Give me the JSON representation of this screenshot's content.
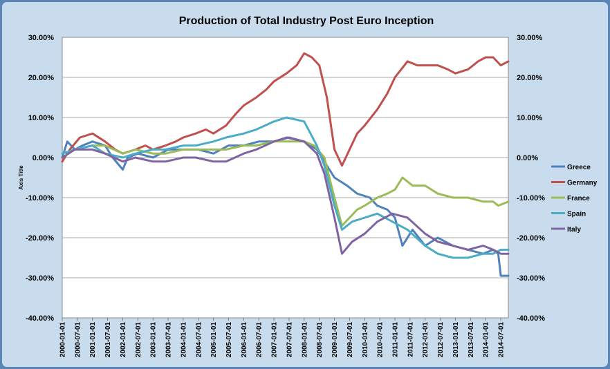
{
  "chart_data": {
    "type": "line",
    "title": "Production of Total Industry Post Euro Inception",
    "ylabel": "Axis Title",
    "xlabel": "",
    "ylim": [
      -0.4,
      0.3
    ],
    "y_ticks": [
      0.3,
      0.2,
      0.1,
      0.0,
      -0.1,
      -0.2,
      -0.3,
      -0.4
    ],
    "y_tick_labels": [
      "30.00%",
      "20.00%",
      "10.00%",
      "0.00%",
      "-10.00%",
      "-20.00%",
      "-30.00%",
      "-40.00%"
    ],
    "x_start": "2000-01",
    "x_end": "2014-10",
    "x_tick_labels": [
      "2000-01-01",
      "2000-07-01",
      "2001-01-01",
      "2001-07-01",
      "2002-01-01",
      "2002-07-01",
      "2003-01-01",
      "2003-07-01",
      "2004-01-01",
      "2004-07-01",
      "2005-01-01",
      "2005-07-01",
      "2006-01-01",
      "2006-07-01",
      "2007-01-01",
      "2007-07-01",
      "2008-01-01",
      "2008-07-01",
      "2009-01-01",
      "2009-07-01",
      "2010-01-01",
      "2010-07-01",
      "2011-01-01",
      "2011-07-01",
      "2012-01-01",
      "2012-07-01",
      "2013-01-01",
      "2013-07-01",
      "2014-01-01",
      "2014-07-01"
    ],
    "legend_position": "right",
    "grid": true,
    "series": [
      {
        "name": "Greece",
        "color": "#4f81bd",
        "points": [
          [
            "2000-01",
            0.0
          ],
          [
            "2000-03",
            0.04
          ],
          [
            "2000-06",
            0.02
          ],
          [
            "2000-09",
            0.03
          ],
          [
            "2001-01",
            0.04
          ],
          [
            "2001-06",
            0.03
          ],
          [
            "2001-09",
            0.0
          ],
          [
            "2002-01",
            -0.03
          ],
          [
            "2002-03",
            0.0
          ],
          [
            "2002-07",
            0.01
          ],
          [
            "2003-01",
            0.0
          ],
          [
            "2003-07",
            0.02
          ],
          [
            "2004-01",
            0.02
          ],
          [
            "2004-07",
            0.02
          ],
          [
            "2005-01",
            0.01
          ],
          [
            "2005-07",
            0.03
          ],
          [
            "2006-01",
            0.03
          ],
          [
            "2006-07",
            0.04
          ],
          [
            "2007-01",
            0.04
          ],
          [
            "2007-07",
            0.05
          ],
          [
            "2008-01",
            0.04
          ],
          [
            "2008-06",
            0.02
          ],
          [
            "2008-09",
            -0.01
          ],
          [
            "2009-01",
            -0.05
          ],
          [
            "2009-06",
            -0.07
          ],
          [
            "2009-10",
            -0.09
          ],
          [
            "2010-03",
            -0.1
          ],
          [
            "2010-06",
            -0.12
          ],
          [
            "2010-10",
            -0.13
          ],
          [
            "2011-01",
            -0.15
          ],
          [
            "2011-04",
            -0.22
          ],
          [
            "2011-08",
            -0.18
          ],
          [
            "2012-01",
            -0.22
          ],
          [
            "2012-06",
            -0.2
          ],
          [
            "2012-12",
            -0.22
          ],
          [
            "2013-06",
            -0.23
          ],
          [
            "2013-12",
            -0.24
          ],
          [
            "2014-04",
            -0.23
          ],
          [
            "2014-06",
            -0.24
          ],
          [
            "2014-07",
            -0.295
          ],
          [
            "2014-10",
            -0.295
          ]
        ]
      },
      {
        "name": "Germany",
        "color": "#c0504d",
        "points": [
          [
            "2000-01",
            -0.01
          ],
          [
            "2000-04",
            0.02
          ],
          [
            "2000-08",
            0.05
          ],
          [
            "2001-01",
            0.06
          ],
          [
            "2001-06",
            0.04
          ],
          [
            "2001-10",
            0.02
          ],
          [
            "2002-01",
            0.01
          ],
          [
            "2002-06",
            0.02
          ],
          [
            "2002-10",
            0.03
          ],
          [
            "2003-01",
            0.02
          ],
          [
            "2003-06",
            0.03
          ],
          [
            "2003-10",
            0.04
          ],
          [
            "2004-01",
            0.05
          ],
          [
            "2004-06",
            0.06
          ],
          [
            "2004-10",
            0.07
          ],
          [
            "2005-01",
            0.06
          ],
          [
            "2005-06",
            0.08
          ],
          [
            "2005-10",
            0.11
          ],
          [
            "2006-01",
            0.13
          ],
          [
            "2006-06",
            0.15
          ],
          [
            "2006-10",
            0.17
          ],
          [
            "2007-01",
            0.19
          ],
          [
            "2007-06",
            0.21
          ],
          [
            "2007-10",
            0.23
          ],
          [
            "2008-01",
            0.26
          ],
          [
            "2008-04",
            0.25
          ],
          [
            "2008-07",
            0.23
          ],
          [
            "2008-10",
            0.15
          ],
          [
            "2009-01",
            0.02
          ],
          [
            "2009-04",
            -0.02
          ],
          [
            "2009-07",
            0.02
          ],
          [
            "2009-10",
            0.06
          ],
          [
            "2010-01",
            0.08
          ],
          [
            "2010-06",
            0.12
          ],
          [
            "2010-10",
            0.16
          ],
          [
            "2011-01",
            0.2
          ],
          [
            "2011-06",
            0.24
          ],
          [
            "2011-10",
            0.23
          ],
          [
            "2012-01",
            0.23
          ],
          [
            "2012-06",
            0.23
          ],
          [
            "2012-10",
            0.22
          ],
          [
            "2013-01",
            0.21
          ],
          [
            "2013-06",
            0.22
          ],
          [
            "2013-10",
            0.24
          ],
          [
            "2014-01",
            0.25
          ],
          [
            "2014-04",
            0.25
          ],
          [
            "2014-07",
            0.23
          ],
          [
            "2014-10",
            0.24
          ]
        ]
      },
      {
        "name": "France",
        "color": "#9bbb59",
        "points": [
          [
            "2000-01",
            0.0
          ],
          [
            "2000-06",
            0.02
          ],
          [
            "2001-01",
            0.03
          ],
          [
            "2001-06",
            0.03
          ],
          [
            "2002-01",
            0.01
          ],
          [
            "2002-06",
            0.02
          ],
          [
            "2003-01",
            0.01
          ],
          [
            "2003-06",
            0.01
          ],
          [
            "2004-01",
            0.02
          ],
          [
            "2004-06",
            0.02
          ],
          [
            "2005-01",
            0.02
          ],
          [
            "2005-06",
            0.02
          ],
          [
            "2006-01",
            0.03
          ],
          [
            "2006-06",
            0.03
          ],
          [
            "2007-01",
            0.04
          ],
          [
            "2007-06",
            0.04
          ],
          [
            "2008-01",
            0.04
          ],
          [
            "2008-05",
            0.03
          ],
          [
            "2008-09",
            0.0
          ],
          [
            "2009-01",
            -0.1
          ],
          [
            "2009-04",
            -0.17
          ],
          [
            "2009-07",
            -0.15
          ],
          [
            "2009-10",
            -0.13
          ],
          [
            "2010-01",
            -0.12
          ],
          [
            "2010-06",
            -0.1
          ],
          [
            "2010-10",
            -0.09
          ],
          [
            "2011-01",
            -0.08
          ],
          [
            "2011-04",
            -0.05
          ],
          [
            "2011-08",
            -0.07
          ],
          [
            "2012-01",
            -0.07
          ],
          [
            "2012-06",
            -0.09
          ],
          [
            "2012-12",
            -0.1
          ],
          [
            "2013-06",
            -0.1
          ],
          [
            "2013-12",
            -0.11
          ],
          [
            "2014-04",
            -0.11
          ],
          [
            "2014-06",
            -0.12
          ],
          [
            "2014-10",
            -0.11
          ]
        ]
      },
      {
        "name": "Spain",
        "color": "#4bacc6",
        "points": [
          [
            "2000-01",
            0.01
          ],
          [
            "2000-06",
            0.02
          ],
          [
            "2001-01",
            0.03
          ],
          [
            "2001-06",
            0.01
          ],
          [
            "2002-01",
            0.0
          ],
          [
            "2002-06",
            0.01
          ],
          [
            "2003-01",
            0.02
          ],
          [
            "2003-06",
            0.02
          ],
          [
            "2004-01",
            0.03
          ],
          [
            "2004-06",
            0.03
          ],
          [
            "2005-01",
            0.04
          ],
          [
            "2005-06",
            0.05
          ],
          [
            "2006-01",
            0.06
          ],
          [
            "2006-06",
            0.07
          ],
          [
            "2007-01",
            0.09
          ],
          [
            "2007-06",
            0.1
          ],
          [
            "2008-01",
            0.09
          ],
          [
            "2008-06",
            0.03
          ],
          [
            "2008-09",
            -0.02
          ],
          [
            "2009-01",
            -0.12
          ],
          [
            "2009-04",
            -0.18
          ],
          [
            "2009-08",
            -0.16
          ],
          [
            "2010-01",
            -0.15
          ],
          [
            "2010-06",
            -0.14
          ],
          [
            "2010-12",
            -0.16
          ],
          [
            "2011-06",
            -0.18
          ],
          [
            "2012-01",
            -0.22
          ],
          [
            "2012-06",
            -0.24
          ],
          [
            "2012-12",
            -0.25
          ],
          [
            "2013-06",
            -0.25
          ],
          [
            "2013-12",
            -0.24
          ],
          [
            "2014-04",
            -0.24
          ],
          [
            "2014-07",
            -0.23
          ],
          [
            "2014-10",
            -0.23
          ]
        ]
      },
      {
        "name": "Italy",
        "color": "#8064a2",
        "points": [
          [
            "2000-01",
            0.0
          ],
          [
            "2000-06",
            0.02
          ],
          [
            "2001-01",
            0.02
          ],
          [
            "2001-06",
            0.01
          ],
          [
            "2002-01",
            -0.01
          ],
          [
            "2002-06",
            0.0
          ],
          [
            "2003-01",
            -0.01
          ],
          [
            "2003-06",
            -0.01
          ],
          [
            "2004-01",
            0.0
          ],
          [
            "2004-06",
            0.0
          ],
          [
            "2005-01",
            -0.01
          ],
          [
            "2005-06",
            -0.01
          ],
          [
            "2006-01",
            0.01
          ],
          [
            "2006-06",
            0.02
          ],
          [
            "2007-01",
            0.04
          ],
          [
            "2007-06",
            0.05
          ],
          [
            "2008-01",
            0.04
          ],
          [
            "2008-06",
            0.01
          ],
          [
            "2008-09",
            -0.04
          ],
          [
            "2009-01",
            -0.15
          ],
          [
            "2009-04",
            -0.24
          ],
          [
            "2009-08",
            -0.21
          ],
          [
            "2010-01",
            -0.19
          ],
          [
            "2010-06",
            -0.16
          ],
          [
            "2010-12",
            -0.14
          ],
          [
            "2011-06",
            -0.15
          ],
          [
            "2012-01",
            -0.19
          ],
          [
            "2012-06",
            -0.21
          ],
          [
            "2012-12",
            -0.22
          ],
          [
            "2013-06",
            -0.23
          ],
          [
            "2013-12",
            -0.22
          ],
          [
            "2014-04",
            -0.23
          ],
          [
            "2014-07",
            -0.24
          ],
          [
            "2014-10",
            -0.24
          ]
        ]
      }
    ]
  }
}
